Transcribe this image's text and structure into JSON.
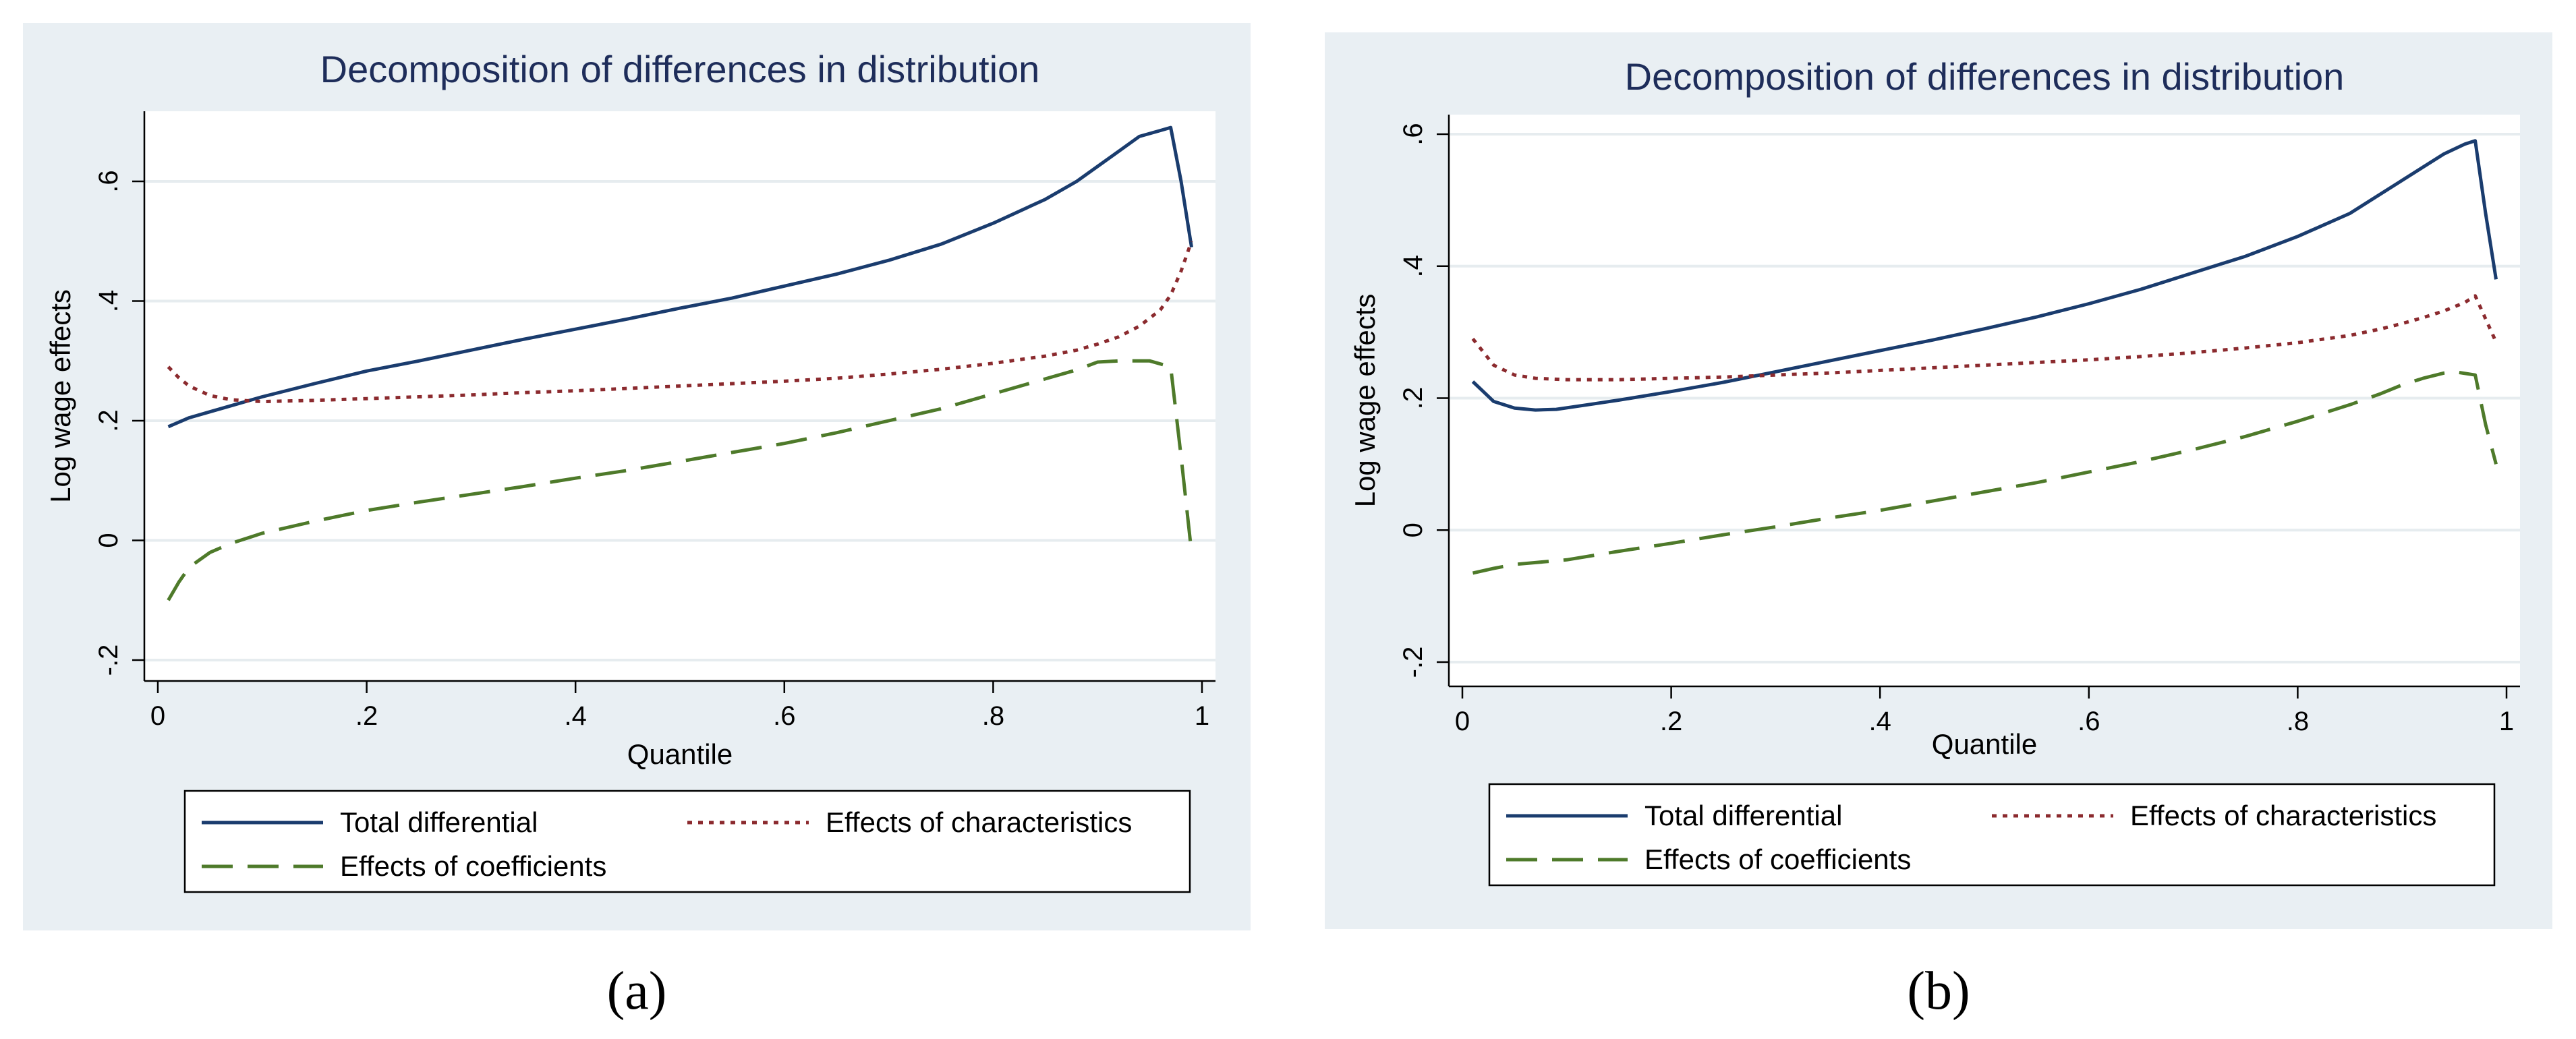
{
  "chart_data": [
    {
      "type": "line",
      "title": "Decomposition of differences in distribution",
      "xlabel": "Quantile",
      "ylabel": "Log wage effects",
      "xlim": [
        0,
        1
      ],
      "ylim": [
        -0.2,
        0.7
      ],
      "xticks": [
        0,
        0.2,
        0.4,
        0.6,
        0.8,
        1
      ],
      "xtick_labels": [
        "0",
        ".2",
        ".4",
        ".6",
        ".8",
        "1"
      ],
      "yticks": [
        -0.2,
        0,
        0.2,
        0.4,
        0.6
      ],
      "ytick_labels": [
        "-.2",
        "0",
        ".2",
        ".4",
        ".6"
      ],
      "grid": true,
      "legend_position": "bottom",
      "series": [
        {
          "name": "Total differential",
          "color": "#1a3c6e",
          "dash": "solid",
          "x": [
            0.01,
            0.03,
            0.05,
            0.07,
            0.1,
            0.15,
            0.2,
            0.25,
            0.3,
            0.35,
            0.4,
            0.45,
            0.5,
            0.55,
            0.6,
            0.65,
            0.7,
            0.75,
            0.8,
            0.85,
            0.88,
            0.9,
            0.92,
            0.94,
            0.96,
            0.97,
            0.98,
            0.99
          ],
          "y": [
            0.19,
            0.205,
            0.215,
            0.225,
            0.24,
            0.262,
            0.283,
            0.3,
            0.318,
            0.336,
            0.353,
            0.37,
            0.388,
            0.405,
            0.425,
            0.445,
            0.468,
            0.495,
            0.53,
            0.57,
            0.6,
            0.625,
            0.65,
            0.675,
            0.685,
            0.69,
            0.6,
            0.49
          ]
        },
        {
          "name": "Effects of characteristics",
          "color": "#8b2a2e",
          "dash": "dot",
          "x": [
            0.01,
            0.02,
            0.03,
            0.05,
            0.07,
            0.1,
            0.15,
            0.2,
            0.25,
            0.3,
            0.35,
            0.4,
            0.45,
            0.5,
            0.55,
            0.6,
            0.65,
            0.7,
            0.75,
            0.8,
            0.85,
            0.88,
            0.9,
            0.92,
            0.94,
            0.96,
            0.97,
            0.98,
            0.99
          ],
          "y": [
            0.29,
            0.272,
            0.258,
            0.242,
            0.235,
            0.232,
            0.234,
            0.237,
            0.24,
            0.243,
            0.247,
            0.25,
            0.254,
            0.258,
            0.262,
            0.266,
            0.271,
            0.278,
            0.286,
            0.296,
            0.308,
            0.318,
            0.328,
            0.34,
            0.358,
            0.385,
            0.41,
            0.45,
            0.5
          ]
        },
        {
          "name": "Effects of coefficients",
          "color": "#4e7a2a",
          "dash": "dash",
          "x": [
            0.01,
            0.02,
            0.03,
            0.05,
            0.07,
            0.1,
            0.15,
            0.2,
            0.25,
            0.3,
            0.35,
            0.4,
            0.45,
            0.5,
            0.55,
            0.6,
            0.65,
            0.7,
            0.75,
            0.8,
            0.85,
            0.88,
            0.9,
            0.92,
            0.94,
            0.95,
            0.97,
            0.98,
            0.99
          ],
          "y": [
            -0.1,
            -0.07,
            -0.045,
            -0.02,
            -0.005,
            0.012,
            0.032,
            0.05,
            0.064,
            0.077,
            0.09,
            0.104,
            0.117,
            0.132,
            0.147,
            0.162,
            0.18,
            0.2,
            0.22,
            0.245,
            0.27,
            0.285,
            0.298,
            0.3,
            0.3,
            0.3,
            0.29,
            0.14,
            -0.02
          ]
        }
      ]
    },
    {
      "type": "line",
      "title": "Decomposition of differences in distribution",
      "xlabel": "Quantile",
      "ylabel": "Log wage effects",
      "xlim": [
        0,
        1
      ],
      "ylim": [
        -0.2,
        0.6
      ],
      "xticks": [
        0,
        0.2,
        0.4,
        0.6,
        0.8,
        1
      ],
      "xtick_labels": [
        "0",
        ".2",
        ".4",
        ".6",
        ".8",
        "1"
      ],
      "yticks": [
        -0.2,
        0,
        0.2,
        0.4,
        0.6
      ],
      "ytick_labels": [
        "-.2",
        "0",
        ".2",
        ".4",
        ".6"
      ],
      "grid": true,
      "legend_position": "bottom",
      "series": [
        {
          "name": "Total differential",
          "color": "#1a3c6e",
          "dash": "solid",
          "x": [
            0.01,
            0.02,
            0.03,
            0.05,
            0.07,
            0.09,
            0.12,
            0.15,
            0.2,
            0.25,
            0.3,
            0.35,
            0.4,
            0.45,
            0.5,
            0.55,
            0.6,
            0.65,
            0.7,
            0.75,
            0.8,
            0.85,
            0.88,
            0.9,
            0.92,
            0.94,
            0.96,
            0.97,
            0.98,
            0.99
          ],
          "y": [
            0.225,
            0.21,
            0.195,
            0.185,
            0.182,
            0.183,
            0.19,
            0.197,
            0.21,
            0.224,
            0.24,
            0.256,
            0.272,
            0.288,
            0.305,
            0.323,
            0.343,
            0.365,
            0.39,
            0.415,
            0.445,
            0.48,
            0.51,
            0.53,
            0.55,
            0.57,
            0.585,
            0.59,
            0.48,
            0.38
          ]
        },
        {
          "name": "Effects of characteristics",
          "color": "#8b2a2e",
          "dash": "dot",
          "x": [
            0.01,
            0.02,
            0.03,
            0.05,
            0.07,
            0.1,
            0.15,
            0.2,
            0.25,
            0.3,
            0.35,
            0.4,
            0.45,
            0.5,
            0.55,
            0.6,
            0.65,
            0.7,
            0.75,
            0.8,
            0.85,
            0.88,
            0.9,
            0.92,
            0.94,
            0.96,
            0.97,
            0.98,
            0.99
          ],
          "y": [
            0.29,
            0.27,
            0.25,
            0.235,
            0.23,
            0.228,
            0.228,
            0.23,
            0.232,
            0.235,
            0.238,
            0.242,
            0.246,
            0.25,
            0.254,
            0.258,
            0.263,
            0.269,
            0.276,
            0.284,
            0.295,
            0.305,
            0.313,
            0.322,
            0.332,
            0.345,
            0.355,
            0.32,
            0.285
          ]
        },
        {
          "name": "Effects of coefficients",
          "color": "#4e7a2a",
          "dash": "dash",
          "x": [
            0.01,
            0.03,
            0.05,
            0.1,
            0.15,
            0.2,
            0.25,
            0.3,
            0.35,
            0.4,
            0.45,
            0.5,
            0.55,
            0.6,
            0.65,
            0.7,
            0.75,
            0.8,
            0.85,
            0.88,
            0.9,
            0.92,
            0.94,
            0.95,
            0.97,
            0.98,
            0.99
          ],
          "y": [
            -0.065,
            -0.058,
            -0.052,
            -0.045,
            -0.032,
            -0.02,
            -0.007,
            0.005,
            0.018,
            0.03,
            0.044,
            0.058,
            0.072,
            0.088,
            0.104,
            0.122,
            0.142,
            0.165,
            0.19,
            0.207,
            0.22,
            0.23,
            0.238,
            0.24,
            0.235,
            0.16,
            0.1
          ]
        }
      ]
    }
  ],
  "captions": [
    "(a)",
    "(b)"
  ]
}
